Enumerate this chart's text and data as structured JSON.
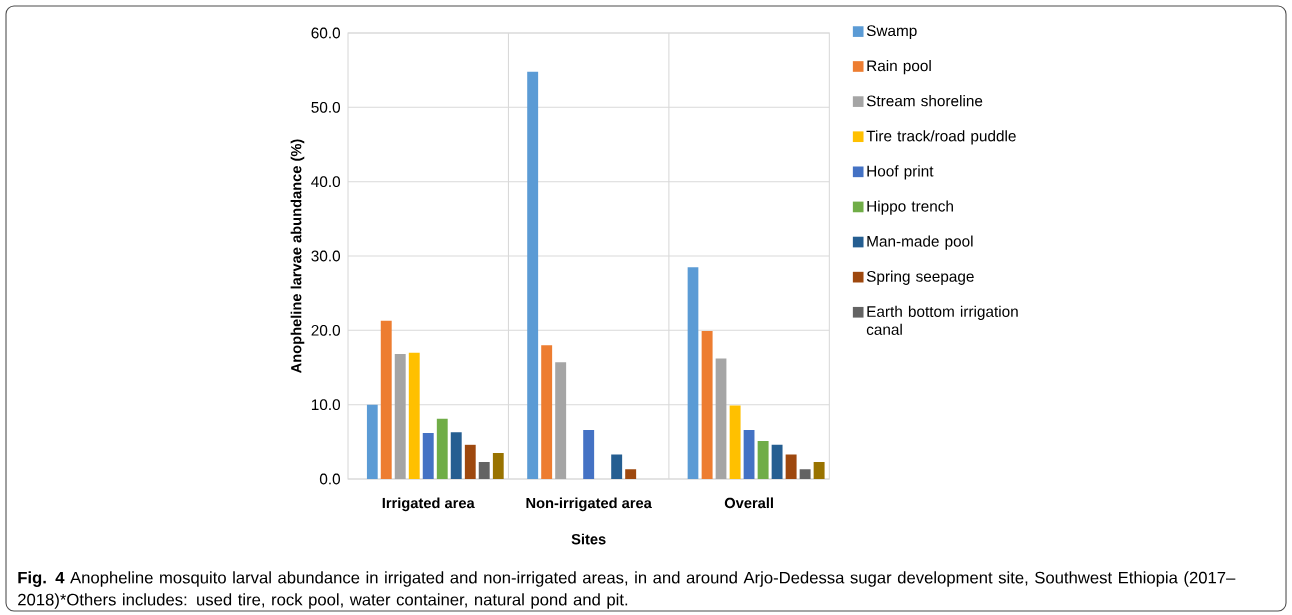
{
  "chart_data": {
    "type": "bar",
    "ylabel": "Anopheline larvae abundance (%)",
    "xlabel": "Sites",
    "categories": [
      "Irrigated area",
      "Non-irrigated area",
      "Overall"
    ],
    "series": [
      {
        "name": "Swamp",
        "color": "#5b9bd5",
        "values": [
          10.0,
          54.8,
          28.5
        ]
      },
      {
        "name": "Rain pool",
        "color": "#ed7d31",
        "values": [
          21.3,
          18.0,
          19.9
        ]
      },
      {
        "name": "Stream shoreline",
        "color": "#a5a5a5",
        "values": [
          16.8,
          15.7,
          16.2
        ]
      },
      {
        "name": "Tire track/road puddle",
        "color": "#ffc000",
        "values": [
          17.0,
          0,
          9.9
        ]
      },
      {
        "name": "Hoof print",
        "color": "#4472c4",
        "values": [
          6.2,
          6.6,
          6.6
        ]
      },
      {
        "name": "Hippo trench",
        "color": "#70ad47",
        "values": [
          8.1,
          0,
          5.1
        ]
      },
      {
        "name": "Man-made pool",
        "color": "#255e91",
        "values": [
          6.3,
          3.3,
          4.6
        ]
      },
      {
        "name": "Spring seepage",
        "color": "#9e480e",
        "values": [
          4.6,
          1.3,
          3.3
        ]
      },
      {
        "name": "Earth bottom irrigation canal",
        "color": "#636363",
        "values": [
          2.3,
          0,
          1.3
        ]
      },
      {
        "color": "#997300",
        "values": [
          3.5,
          0,
          2.3
        ]
      }
    ],
    "ylim": [
      0,
      60
    ],
    "yticks": [
      {
        "value": 0,
        "label": "0.0"
      },
      {
        "value": 10,
        "label": "10.0"
      },
      {
        "value": 20,
        "label": "20.0"
      },
      {
        "value": 30,
        "label": "30.0"
      },
      {
        "value": 40,
        "label": "40.0"
      },
      {
        "value": 50,
        "label": "50.0"
      },
      {
        "value": 60,
        "label": "60.0"
      }
    ],
    "grid": true,
    "legend": "right",
    "annotations": [
      "**Fig. 4** Anopheline mosquito larval abundance in irrigated and non-irrigated areas, in and around Arjo-Dedessa sugar development site, Southwest Ethiopia (2017–2018)*Others includes: used tire, rock pool, water container, natural pond and pit."
    ]
  }
}
